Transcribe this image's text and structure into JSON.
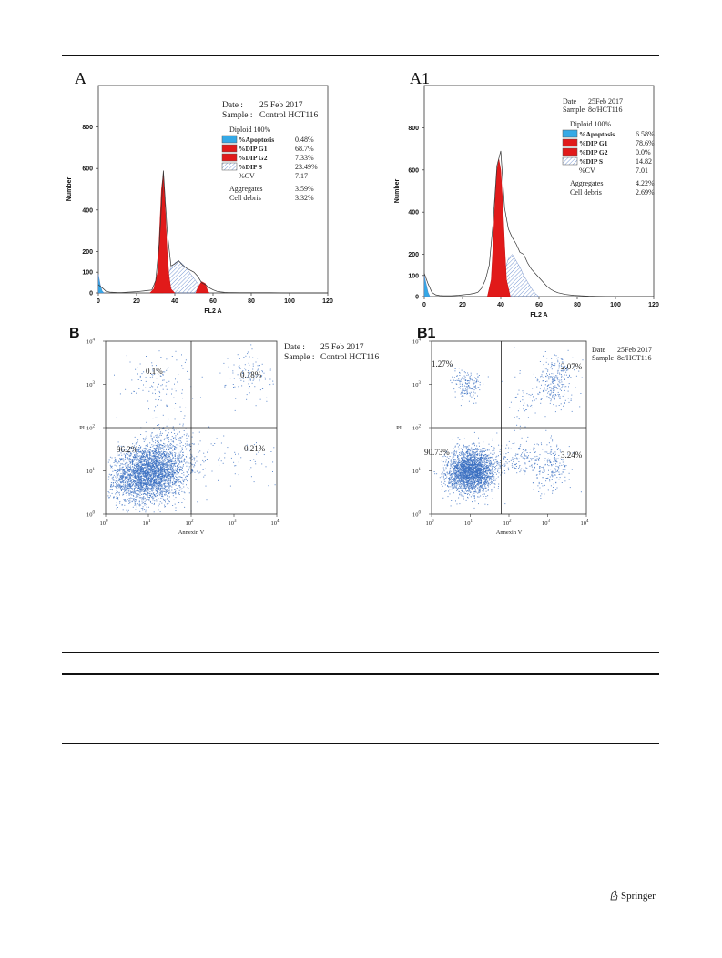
{
  "page": {
    "publisher": "Springer"
  },
  "chart_data": [
    {
      "id": "A",
      "type": "area",
      "panel_label": "A",
      "xlabel": "FL2 A",
      "ylabel": "Number",
      "xlim": [
        0,
        120
      ],
      "ylim": [
        0,
        1000
      ],
      "xticks": [
        "0",
        "20",
        "40",
        "60",
        "80",
        "100",
        "120"
      ],
      "yticks": [
        "0",
        "100",
        "200",
        "400",
        "600",
        "800"
      ],
      "ytick_values": [
        0,
        100,
        200,
        400,
        600,
        800
      ],
      "histogram": {
        "x": [
          0,
          2,
          4,
          6,
          8,
          10,
          12,
          14,
          16,
          18,
          20,
          22,
          24,
          26,
          28,
          30,
          32,
          34,
          36,
          38,
          40,
          42,
          44,
          46,
          48,
          50,
          52,
          54,
          56,
          58,
          60,
          62,
          64,
          66,
          68,
          70,
          74,
          78,
          82,
          86,
          90,
          100,
          110,
          120
        ],
        "y": [
          40,
          25,
          8,
          4,
          3,
          2,
          2,
          3,
          4,
          5,
          6,
          8,
          10,
          12,
          14,
          60,
          250,
          590,
          300,
          130,
          140,
          155,
          135,
          120,
          110,
          100,
          80,
          50,
          40,
          25,
          15,
          8,
          5,
          3,
          2,
          2,
          1,
          1,
          1,
          1,
          1,
          0,
          0,
          0
        ]
      },
      "components": {
        "apoptosis": [
          [
            0,
            90
          ],
          [
            1,
            40
          ],
          [
            2,
            10
          ],
          [
            3,
            0
          ]
        ],
        "g1": [
          [
            27,
            0
          ],
          [
            29,
            20
          ],
          [
            31,
            100
          ],
          [
            32,
            300
          ],
          [
            33,
            500
          ],
          [
            34,
            580
          ],
          [
            35,
            400
          ],
          [
            36,
            200
          ],
          [
            37,
            80
          ],
          [
            38,
            20
          ],
          [
            40,
            0
          ]
        ],
        "g2": [
          [
            51,
            0
          ],
          [
            52,
            25
          ],
          [
            54,
            55
          ],
          [
            56,
            45
          ],
          [
            57,
            15
          ],
          [
            58,
            0
          ]
        ],
        "s": [
          [
            34,
            0
          ],
          [
            36,
            80
          ],
          [
            38,
            120
          ],
          [
            40,
            145
          ],
          [
            42,
            155
          ],
          [
            44,
            140
          ],
          [
            46,
            120
          ],
          [
            48,
            95
          ],
          [
            50,
            70
          ],
          [
            52,
            45
          ],
          [
            54,
            25
          ],
          [
            56,
            10
          ],
          [
            58,
            0
          ]
        ]
      },
      "info": {
        "date_label": "Date :",
        "date": "25 Feb 2017",
        "sample_label": "Sample :",
        "sample": "Control HCT116",
        "diploid": "Diploid 100%",
        "legend": [
          {
            "name": "%Apoptosis",
            "value": "0.48%",
            "color": "#35a9e6"
          },
          {
            "name": "%DIP G1",
            "value": "68.7%",
            "color": "#e11a1a"
          },
          {
            "name": "%DIP G2",
            "value": "7.33%",
            "color": "#e11a1a"
          },
          {
            "name": "%DIP S",
            "value": "23.49%",
            "color": "hatch"
          }
        ],
        "cv_label": "%CV",
        "cv": "7.17",
        "aggregates_label": "Aggregates",
        "aggregates": "3.59%",
        "debris_label": "Cell debris",
        "debris": "3.32%"
      }
    },
    {
      "id": "A1",
      "type": "area",
      "panel_label": "A1",
      "xlabel": "FL2 A",
      "ylabel": "Number",
      "xlim": [
        0,
        120
      ],
      "ylim": [
        0,
        1000
      ],
      "xticks": [
        "0",
        "20",
        "40",
        "60",
        "80",
        "100",
        "120"
      ],
      "yticks": [
        "0",
        "100",
        "200",
        "400",
        "600",
        "800"
      ],
      "ytick_values": [
        0,
        100,
        200,
        400,
        600,
        800
      ],
      "histogram": {
        "x": [
          0,
          2,
          4,
          6,
          8,
          10,
          12,
          14,
          16,
          18,
          20,
          22,
          24,
          26,
          28,
          30,
          32,
          34,
          36,
          38,
          40,
          42,
          44,
          46,
          48,
          50,
          52,
          54,
          56,
          58,
          60,
          62,
          64,
          66,
          68,
          70,
          74,
          78,
          82,
          86,
          90,
          100,
          110,
          120
        ],
        "y": [
          110,
          60,
          20,
          8,
          5,
          4,
          4,
          4,
          5,
          6,
          8,
          10,
          12,
          15,
          20,
          40,
          80,
          150,
          350,
          620,
          690,
          420,
          320,
          280,
          250,
          210,
          200,
          160,
          130,
          110,
          90,
          70,
          50,
          35,
          25,
          18,
          10,
          6,
          4,
          2,
          1,
          0,
          0,
          0
        ]
      },
      "components": {
        "apoptosis": [
          [
            0,
            100
          ],
          [
            1,
            60
          ],
          [
            2,
            20
          ],
          [
            3,
            0
          ]
        ],
        "g1": [
          [
            33,
            0
          ],
          [
            35,
            80
          ],
          [
            36,
            250
          ],
          [
            37,
            450
          ],
          [
            38,
            600
          ],
          [
            39,
            650
          ],
          [
            40,
            600
          ],
          [
            41,
            450
          ],
          [
            42,
            250
          ],
          [
            43,
            80
          ],
          [
            45,
            0
          ]
        ],
        "g2": [],
        "s": [
          [
            40,
            0
          ],
          [
            42,
            120
          ],
          [
            44,
            180
          ],
          [
            46,
            200
          ],
          [
            48,
            170
          ],
          [
            50,
            140
          ],
          [
            52,
            100
          ],
          [
            54,
            70
          ],
          [
            56,
            40
          ],
          [
            58,
            15
          ],
          [
            60,
            0
          ]
        ]
      },
      "info": {
        "date_label": "Date",
        "date": "25Feb 2017",
        "sample_label": "Sample",
        "sample": "8c/HCT116",
        "diploid": "Diploid 100%",
        "legend": [
          {
            "name": "%Apoptosis",
            "value": "6.58%",
            "color": "#35a9e6"
          },
          {
            "name": "%DIP G1",
            "value": "78.6%",
            "color": "#e11a1a"
          },
          {
            "name": "%DIP G2",
            "value": "0.0%",
            "color": "#e11a1a"
          },
          {
            "name": "%DIP S",
            "value": "14.82",
            "color": "hatch"
          }
        ],
        "cv_label": "%CV",
        "cv": "7.01",
        "aggregates_label": "Aggregates",
        "aggregates": "4.22%",
        "debris_label": "Cell debris",
        "debris": "2.69%"
      }
    },
    {
      "id": "B",
      "type": "scatter",
      "panel_label": "B",
      "xlabel": "Annexin V",
      "ylabel": "PI",
      "xlim": [
        0,
        4
      ],
      "ylim": [
        0,
        4
      ],
      "scale": "log",
      "xticks": [
        "0",
        "1",
        "2",
        "3",
        "4"
      ],
      "yticks": [
        "0",
        "1",
        "2",
        "3",
        "4"
      ],
      "quadrant_x": 2.0,
      "quadrant_y": 2.0,
      "quadrants": {
        "upper_left": "0.1%",
        "upper_right": "0.18%",
        "lower_left": "96.2%",
        "lower_right": "0.21%"
      },
      "info": {
        "date_label": "Date :",
        "date": "25 Feb 2017",
        "sample_label": "Sample :",
        "sample": "Control HCT116"
      },
      "clusters": [
        {
          "cx": 1.0,
          "cy": 0.95,
          "sx": 0.45,
          "sy": 0.32,
          "n": 3200,
          "rot": 0.25
        },
        {
          "cx": 1.5,
          "cy": 1.6,
          "sx": 0.3,
          "sy": 0.35,
          "n": 180,
          "rot": 0
        },
        {
          "cx": 1.2,
          "cy": 3.1,
          "sx": 0.4,
          "sy": 0.35,
          "n": 120,
          "rot": 0
        },
        {
          "cx": 3.4,
          "cy": 3.2,
          "sx": 0.3,
          "sy": 0.3,
          "n": 110,
          "rot": 0
        },
        {
          "cx": 3.2,
          "cy": 1.3,
          "sx": 0.6,
          "sy": 0.35,
          "n": 80,
          "rot": 0
        }
      ],
      "dot_color": "#3a6fc2"
    },
    {
      "id": "B1",
      "type": "scatter",
      "panel_label": "B1",
      "xlabel": "Annexin V",
      "ylabel": "PI",
      "xlim": [
        0,
        4
      ],
      "ylim": [
        0,
        4
      ],
      "scale": "log",
      "xticks": [
        "0",
        "1",
        "2",
        "3",
        "4"
      ],
      "yticks": [
        "0",
        "1",
        "2",
        "3",
        "4"
      ],
      "quadrant_x": 1.8,
      "quadrant_y": 2.0,
      "quadrants": {
        "upper_left": "1.27%",
        "upper_right": "2.07%",
        "lower_left": "90.73%",
        "lower_right": "3.24%"
      },
      "info": {
        "date_label": "Date",
        "date": "25Feb 2017",
        "sample_label": "Sample",
        "sample": "8c/HCT116"
      },
      "clusters": [
        {
          "cx": 1.0,
          "cy": 1.0,
          "sx": 0.3,
          "sy": 0.25,
          "n": 2400,
          "rot": 0.1
        },
        {
          "cx": 0.9,
          "cy": 3.0,
          "sx": 0.18,
          "sy": 0.18,
          "n": 160,
          "rot": 0
        },
        {
          "cx": 3.2,
          "cy": 3.1,
          "sx": 0.25,
          "sy": 0.3,
          "n": 260,
          "rot": 0
        },
        {
          "cx": 3.1,
          "cy": 1.1,
          "sx": 0.25,
          "sy": 0.3,
          "n": 200,
          "rot": 0
        },
        {
          "cx": 2.2,
          "cy": 1.3,
          "sx": 0.4,
          "sy": 0.2,
          "n": 160,
          "rot": 0
        },
        {
          "cx": 2.4,
          "cy": 2.5,
          "sx": 0.2,
          "sy": 0.5,
          "n": 60,
          "rot": 0
        }
      ],
      "dot_color": "#3a6fc2"
    }
  ]
}
